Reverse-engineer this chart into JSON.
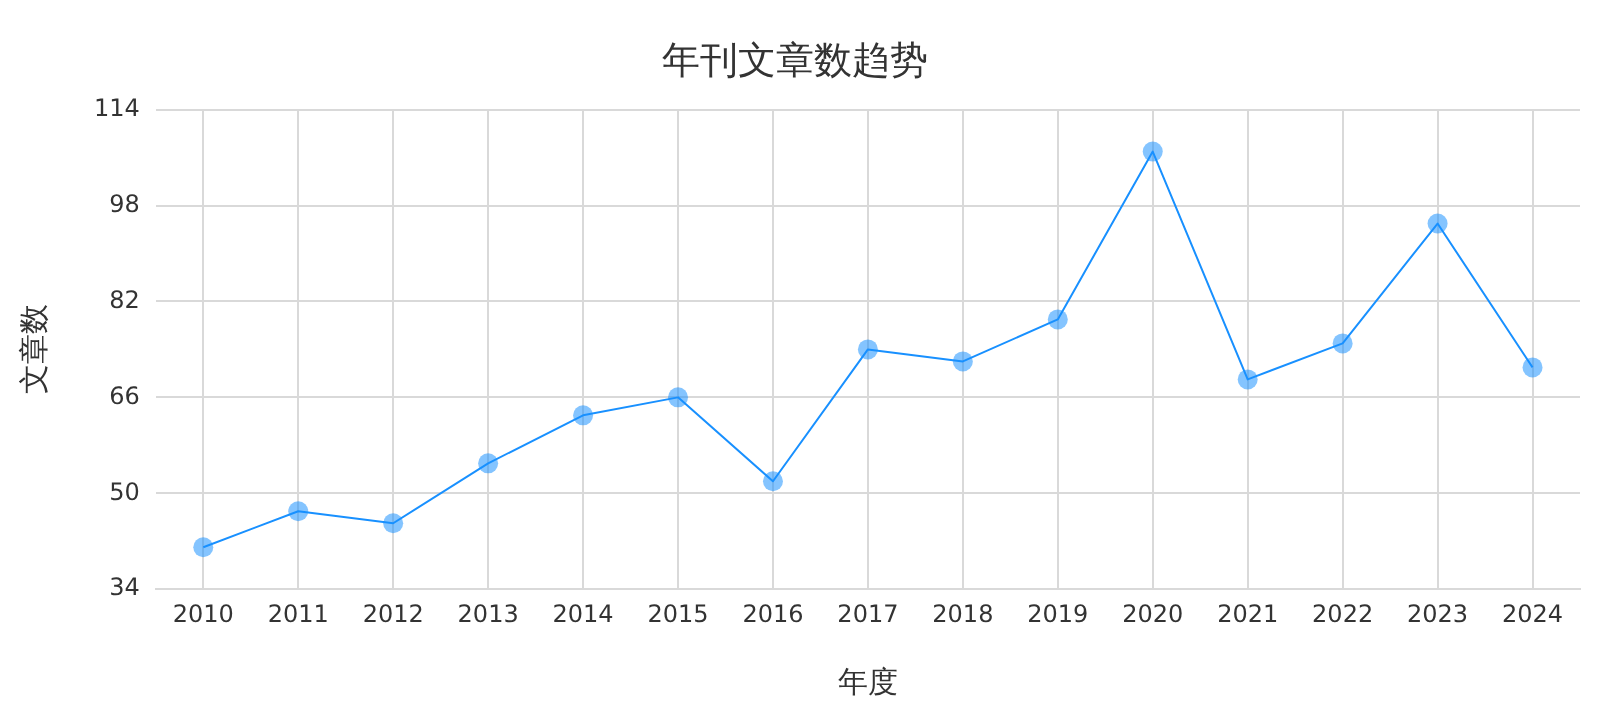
{
  "chart_data": {
    "type": "line",
    "title": "年刊文章数趋势",
    "xlabel": "年度",
    "ylabel": "文章数",
    "categories": [
      "2010",
      "2011",
      "2012",
      "2013",
      "2014",
      "2015",
      "2016",
      "2017",
      "2018",
      "2019",
      "2020",
      "2021",
      "2022",
      "2023",
      "2024"
    ],
    "series": [
      {
        "color": "#1890ff",
        "values": [
          41,
          47,
          45,
          55,
          63,
          66,
          52,
          74,
          72,
          79,
          107,
          69,
          75,
          95,
          71
        ]
      }
    ],
    "ylim": [
      34,
      114
    ],
    "yticks": [
      34,
      50,
      66,
      82,
      98,
      114
    ],
    "grid": true,
    "legend": false,
    "marker": "circle",
    "line_style": "solid"
  }
}
